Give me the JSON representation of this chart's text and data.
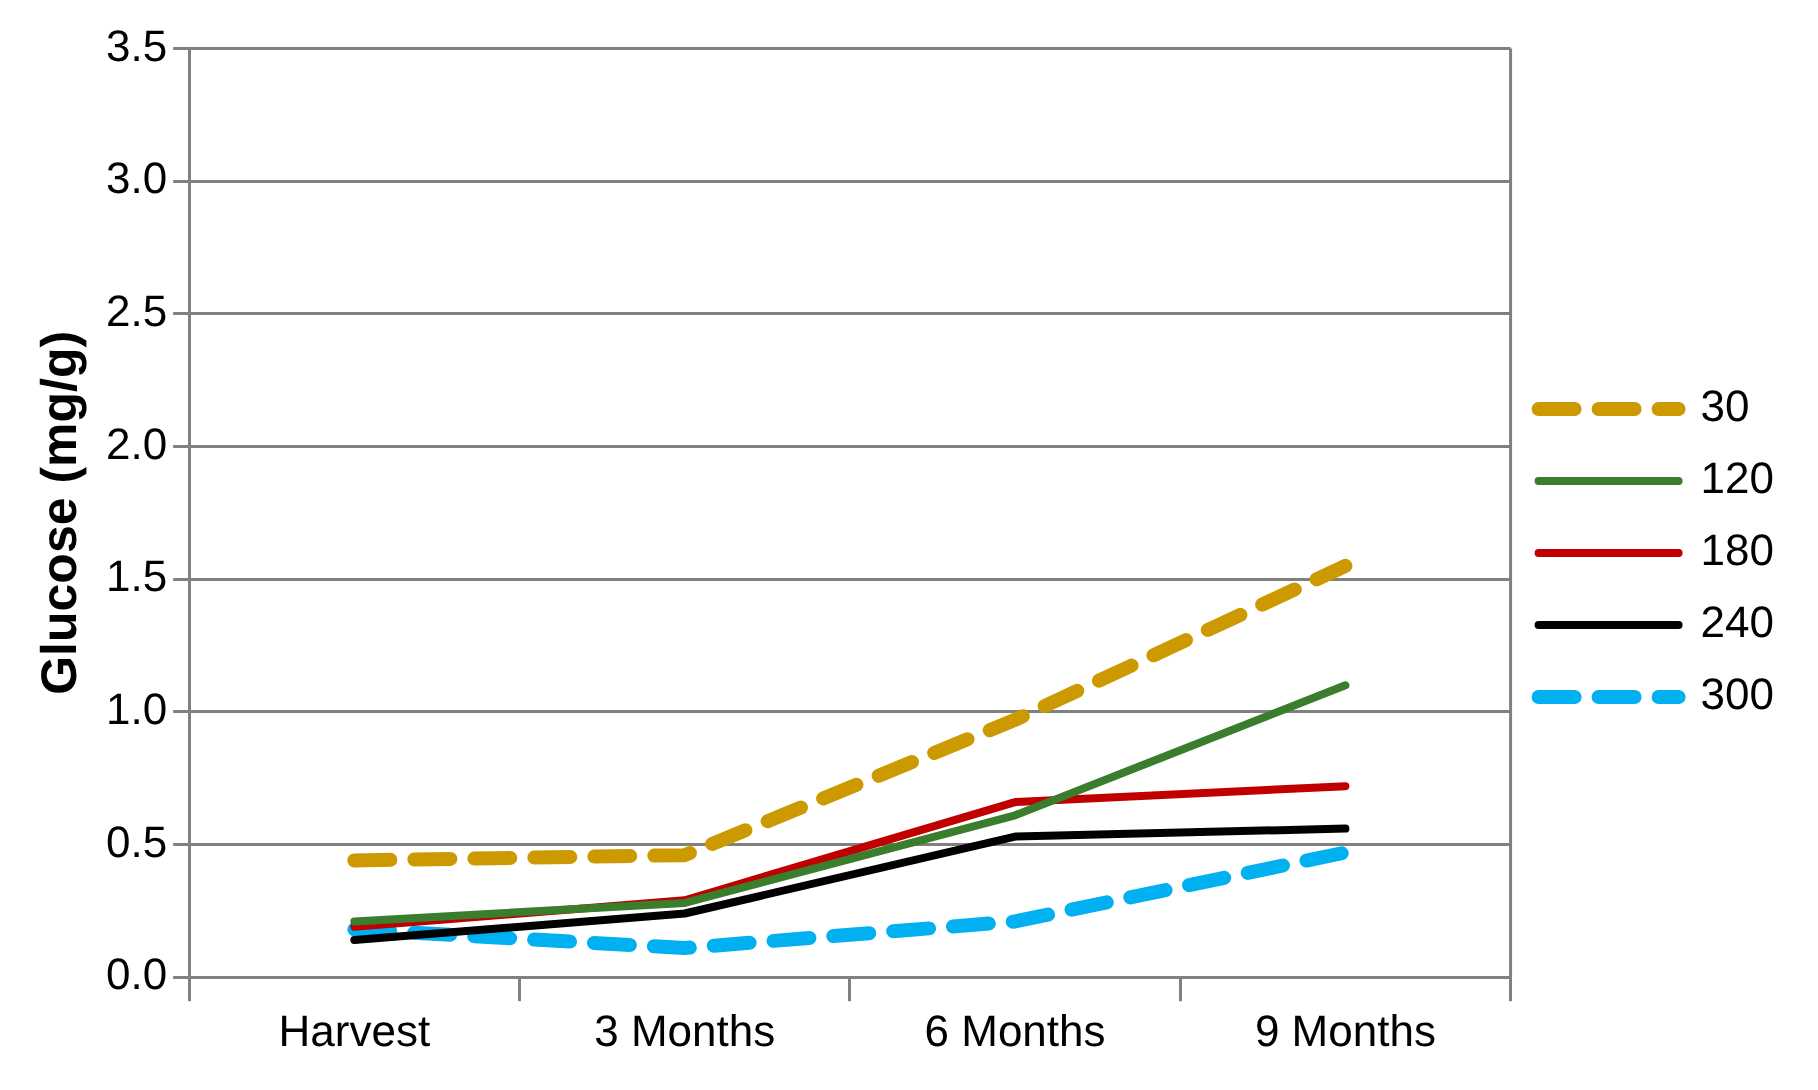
{
  "chart_data": {
    "type": "line",
    "ylabel": "Glucose (mg/g)",
    "categories": [
      "Harvest",
      "3 Months",
      "6 Months",
      "9 Months"
    ],
    "series": [
      {
        "name": "30",
        "color": "#cc9900",
        "values": [
          0.44,
          0.46,
          0.97,
          1.55
        ],
        "line_style": "dashed"
      },
      {
        "name": "120",
        "color": "#3a7d2c",
        "values": [
          0.21,
          0.28,
          0.61,
          1.1
        ]
      },
      {
        "name": "180",
        "color": "#c00000",
        "values": [
          0.19,
          0.29,
          0.66,
          0.72
        ]
      },
      {
        "name": "240",
        "color": "#000000",
        "values": [
          0.14,
          0.24,
          0.53,
          0.56
        ]
      },
      {
        "name": "300",
        "color": "#00b0f0",
        "values": [
          0.18,
          0.11,
          0.21,
          0.47
        ],
        "line_style": "dashed"
      }
    ],
    "ylim": [
      0,
      3.5
    ],
    "yticks": [
      {
        "value": 0,
        "label": "0.0"
      },
      0.5,
      {
        "value": 1,
        "label": "1.0"
      },
      1.5,
      {
        "value": 2,
        "label": "2.0"
      },
      2.5,
      {
        "value": 3,
        "label": "3.0"
      },
      3.5
    ],
    "grid": "y",
    "legend": "right",
    "marker": "none"
  }
}
